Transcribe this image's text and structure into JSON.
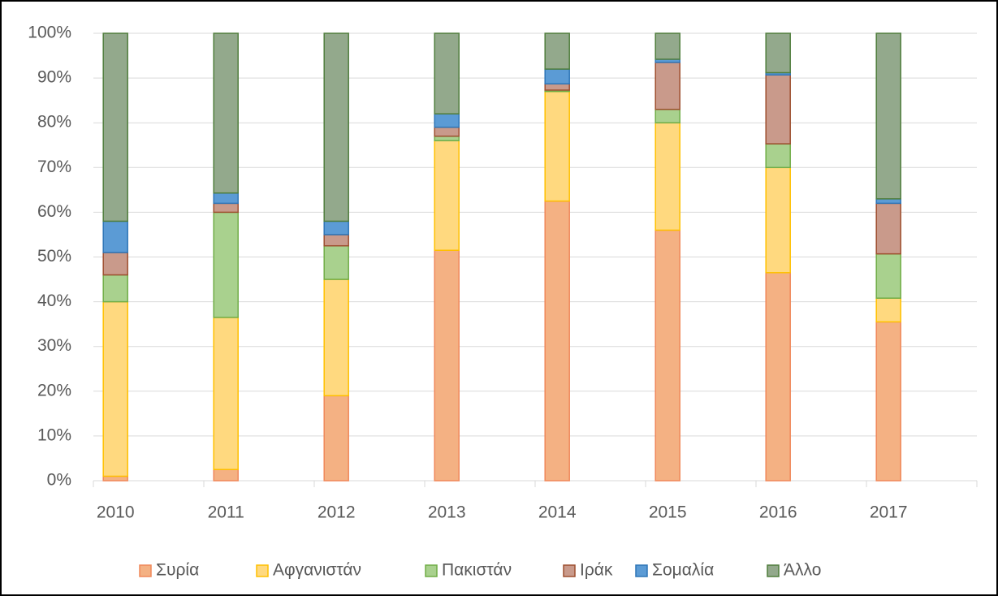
{
  "chart_data": {
    "type": "bar",
    "stacked": true,
    "categories": [
      "2010",
      "2011",
      "2012",
      "2013",
      "2014",
      "2015",
      "2016",
      "2017"
    ],
    "series": [
      {
        "name": "Συρία",
        "color": "#f4b183",
        "stroke": "#f0885a",
        "values": [
          1,
          2.5,
          19,
          51.5,
          62.5,
          56,
          46.5,
          35.5
        ]
      },
      {
        "name": "Αφγανιστάν",
        "color": "#ffd97f",
        "stroke": "#ffc000",
        "values": [
          39,
          34,
          26,
          24.5,
          24.5,
          24,
          23.5,
          5.3
        ]
      },
      {
        "name": "Πακιστάν",
        "color": "#a9d18e",
        "stroke": "#70ad47",
        "values": [
          6,
          23.5,
          7.5,
          1,
          0.3,
          3,
          5.3,
          9.9
        ]
      },
      {
        "name": "Ιράκ",
        "color": "#c99a8b",
        "stroke": "#9e4f2f",
        "values": [
          5,
          2,
          2.5,
          2,
          1.4,
          10.5,
          15.4,
          11.3
        ]
      },
      {
        "name": "Σομαλία",
        "color": "#5b9bd5",
        "stroke": "#2e75b6",
        "values": [
          7,
          2.3,
          3,
          3,
          3.3,
          0.7,
          0.5,
          1
        ]
      },
      {
        "name": "Άλλο",
        "color": "#93a98c",
        "stroke": "#507e3d",
        "values": [
          42,
          35.7,
          42,
          18,
          8,
          5.8,
          8.8,
          37
        ]
      }
    ],
    "ylim": [
      0,
      100
    ],
    "yticks": [
      {
        "value": 0,
        "label": "0%"
      },
      {
        "value": 10,
        "label": "10%"
      },
      {
        "value": 20,
        "label": "20%"
      },
      {
        "value": 30,
        "label": "30%"
      },
      {
        "value": 40,
        "label": "40%"
      },
      {
        "value": 50,
        "label": "50%"
      },
      {
        "value": 60,
        "label": "60%"
      },
      {
        "value": 70,
        "label": "70%"
      },
      {
        "value": 80,
        "label": "80%"
      },
      {
        "value": 90,
        "label": "90%"
      },
      {
        "value": 100,
        "label": "100%"
      }
    ],
    "grid": true,
    "legend": "bottom"
  }
}
